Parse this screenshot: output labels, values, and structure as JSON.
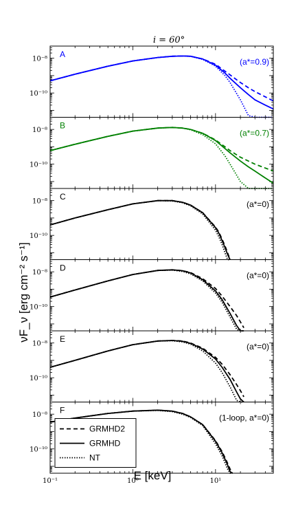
{
  "figure": {
    "title": "i = 60°",
    "xlabel": "E [keV]",
    "ylabel": "νF_ν [erg cm⁻² s⁻¹]"
  },
  "legend": {
    "entries": [
      {
        "label": "GRMHD2",
        "style": "dashed"
      },
      {
        "label": "GRMHD",
        "style": "solid"
      },
      {
        "label": "NT",
        "style": "dotted"
      }
    ]
  },
  "chart_data": {
    "type": "line",
    "xscale": "log",
    "yscale": "log",
    "xlim": [
      0.1,
      50
    ],
    "ylim": [
      4e-12,
      5e-08
    ],
    "x_ticks": [
      "10⁻¹",
      "10⁰",
      "10¹"
    ],
    "y_ticks": [
      "10⁻⁸",
      "10⁻¹⁰"
    ],
    "panels": [
      {
        "id": "A",
        "annotation": "(a*=0.9)",
        "color": "#0000ff",
        "x": [
          0.1,
          0.2,
          0.5,
          1,
          2,
          3,
          4,
          5,
          7,
          10,
          13,
          15,
          20,
          25,
          30,
          40,
          50
        ],
        "series": [
          {
            "name": "GRMHD2",
            "values": [
              5e-10,
              1.2e-09,
              3.5e-09,
              7e-09,
              1.1e-08,
              1.3e-08,
              1.35e-08,
              1.3e-08,
              9e-09,
              4.5e-09,
              1.8e-09,
              1.1e-09,
              4e-10,
              2e-10,
              1.2e-10,
              6e-11,
              3.5e-11
            ]
          },
          {
            "name": "GRMHD",
            "values": [
              5e-10,
              1.2e-09,
              3.5e-09,
              7e-09,
              1.1e-08,
              1.3e-08,
              1.35e-08,
              1.3e-08,
              9e-09,
              4e-09,
              1.4e-09,
              7e-10,
              2e-10,
              8e-11,
              4e-11,
              2e-11,
              1.2e-11
            ]
          },
          {
            "name": "NT",
            "values": [
              5e-10,
              1.2e-09,
              3.5e-09,
              7e-09,
              1.1e-08,
              1.3e-08,
              1.35e-08,
              1.28e-08,
              8.5e-09,
              3.5e-09,
              1e-09,
              4e-10,
              4e-11,
              5e-12,
              4e-12,
              4e-12,
              4e-12
            ]
          }
        ]
      },
      {
        "id": "B",
        "annotation": "(a*=0.7)",
        "color": "#008000",
        "x": [
          0.1,
          0.2,
          0.5,
          1,
          2,
          3,
          4,
          5,
          7,
          10,
          13,
          15,
          20,
          25,
          30,
          40,
          50
        ],
        "series": [
          {
            "name": "GRMHD2",
            "values": [
              6e-10,
              1.4e-09,
              4e-09,
              8e-09,
              1.2e-08,
              1.3e-08,
              1.2e-08,
              1e-08,
              6e-09,
              2.5e-09,
              1e-09,
              6e-10,
              2.5e-10,
              1.5e-10,
              1e-10,
              6e-11,
              4e-11
            ]
          },
          {
            "name": "GRMHD",
            "values": [
              6e-10,
              1.4e-09,
              4e-09,
              8e-09,
              1.2e-08,
              1.3e-08,
              1.2e-08,
              1e-08,
              6e-09,
              2.3e-09,
              8e-10,
              4.5e-10,
              1.5e-10,
              7e-11,
              4e-11,
              1.6e-11,
              8e-12
            ]
          },
          {
            "name": "NT",
            "values": [
              6e-10,
              1.4e-09,
              4e-09,
              8e-09,
              1.2e-08,
              1.3e-08,
              1.2e-08,
              9.5e-09,
              5e-09,
              1.5e-09,
              3e-10,
              1e-10,
              1e-11,
              4e-12,
              4e-12,
              4e-12,
              4e-12
            ]
          }
        ]
      },
      {
        "id": "C",
        "annotation": "(a*=0)",
        "color": "#000000",
        "x": [
          0.1,
          0.2,
          0.5,
          1,
          2,
          3,
          4,
          5,
          7,
          10,
          11,
          12,
          13,
          14,
          15
        ],
        "series": [
          {
            "name": "GRMHD2",
            "values": [
              4e-10,
              1e-09,
              3e-09,
              6.5e-09,
              1e-08,
              1e-08,
              8e-09,
              5.5e-09,
              2e-09,
              3e-10,
              1.5e-10,
              6e-11,
              2.5e-11,
              1e-11,
              4e-12
            ]
          },
          {
            "name": "GRMHD",
            "values": [
              4e-10,
              1e-09,
              3e-09,
              6.5e-09,
              1e-08,
              1e-08,
              8e-09,
              5.5e-09,
              2e-09,
              2.8e-10,
              1.3e-10,
              5e-11,
              2e-11,
              8e-12,
              4e-12
            ]
          },
          {
            "name": "NT",
            "values": [
              4e-10,
              1e-09,
              3e-09,
              6.5e-09,
              1e-08,
              9.5e-09,
              7.5e-09,
              5e-09,
              1.7e-09,
              2e-10,
              8e-11,
              3e-11,
              1e-11,
              4e-12,
              4e-12
            ]
          }
        ]
      },
      {
        "id": "D",
        "annotation": "(a*=0)",
        "color": "#000000",
        "x": [
          0.1,
          0.2,
          0.5,
          1,
          2,
          3,
          4,
          5,
          7,
          10,
          12,
          15,
          18,
          20,
          22
        ],
        "series": [
          {
            "name": "GRMHD2",
            "values": [
              3.5e-10,
              9e-10,
              3e-09,
              7e-09,
              1.2e-08,
              1.3e-08,
              1.15e-08,
              9e-09,
              4e-09,
              1.1e-09,
              4e-10,
              1e-10,
              3e-11,
              1.3e-11,
              6e-12
            ]
          },
          {
            "name": "GRMHD",
            "values": [
              3.5e-10,
              9e-10,
              3e-09,
              7e-09,
              1.2e-08,
              1.3e-08,
              1.15e-08,
              8.5e-09,
              3.5e-09,
              8e-10,
              2.5e-10,
              4e-11,
              8e-12,
              4e-12,
              4e-12
            ]
          },
          {
            "name": "NT",
            "values": [
              3.5e-10,
              9e-10,
              3e-09,
              7e-09,
              1.2e-08,
              1.25e-08,
              1.05e-08,
              7.5e-09,
              3e-09,
              6e-10,
              1.8e-10,
              2.5e-11,
              5e-12,
              4e-12,
              4e-12
            ]
          }
        ]
      },
      {
        "id": "E",
        "annotation": "(a*=0)",
        "color": "#000000",
        "x": [
          0.1,
          0.2,
          0.5,
          1,
          2,
          3,
          4,
          5,
          7,
          10,
          12,
          15,
          18,
          20,
          22
        ],
        "series": [
          {
            "name": "GRMHD2",
            "values": [
              4e-10,
              1e-09,
              3.5e-09,
              8e-09,
              1.3e-08,
              1.4e-08,
              1.3e-08,
              1e-08,
              5e-09,
              1.5e-09,
              6e-10,
              1.5e-10,
              4e-11,
              1.8e-11,
              8e-12
            ]
          },
          {
            "name": "GRMHD",
            "values": [
              4e-10,
              1e-09,
              3.5e-09,
              8e-09,
              1.3e-08,
              1.4e-08,
              1.25e-08,
              9.5e-09,
              4.5e-09,
              1.2e-09,
              4e-10,
              8e-11,
              1.5e-11,
              6e-12,
              4e-12
            ]
          },
          {
            "name": "NT",
            "values": [
              4e-10,
              1e-09,
              3.5e-09,
              8e-09,
              1.3e-08,
              1.35e-08,
              1.15e-08,
              8.5e-09,
              3.5e-09,
              7e-10,
              2e-10,
              3e-11,
              5e-12,
              4e-12,
              4e-12
            ]
          }
        ]
      },
      {
        "id": "F",
        "annotation": "(1-loop, a*=0)",
        "color": "#000000",
        "x": [
          0.1,
          0.2,
          0.5,
          1,
          2,
          3,
          4,
          5,
          7,
          10,
          12,
          14,
          15,
          16
        ],
        "series": [
          {
            "name": "GRMHD2",
            "values": [
              3.5e-09,
              6e-09,
              1.1e-08,
              1.5e-08,
              1.7e-08,
              1.5e-08,
              1.1e-08,
              7e-09,
              2.5e-09,
              3e-10,
              7e-11,
              1.5e-11,
              7e-12,
              4e-12
            ]
          },
          {
            "name": "GRMHD",
            "values": [
              3.5e-09,
              6e-09,
              1.1e-08,
              1.5e-08,
              1.7e-08,
              1.5e-08,
              1.1e-08,
              7e-09,
              2.5e-09,
              2.8e-10,
              6e-11,
              1.2e-11,
              5e-12,
              4e-12
            ]
          },
          {
            "name": "NT",
            "values": [
              3.5e-09,
              6e-09,
              1.1e-08,
              1.5e-08,
              1.65e-08,
              1.4e-08,
              1e-08,
              6.5e-09,
              2.2e-09,
              2e-10,
              4e-11,
              7e-12,
              4e-12,
              4e-12
            ]
          }
        ]
      }
    ]
  }
}
